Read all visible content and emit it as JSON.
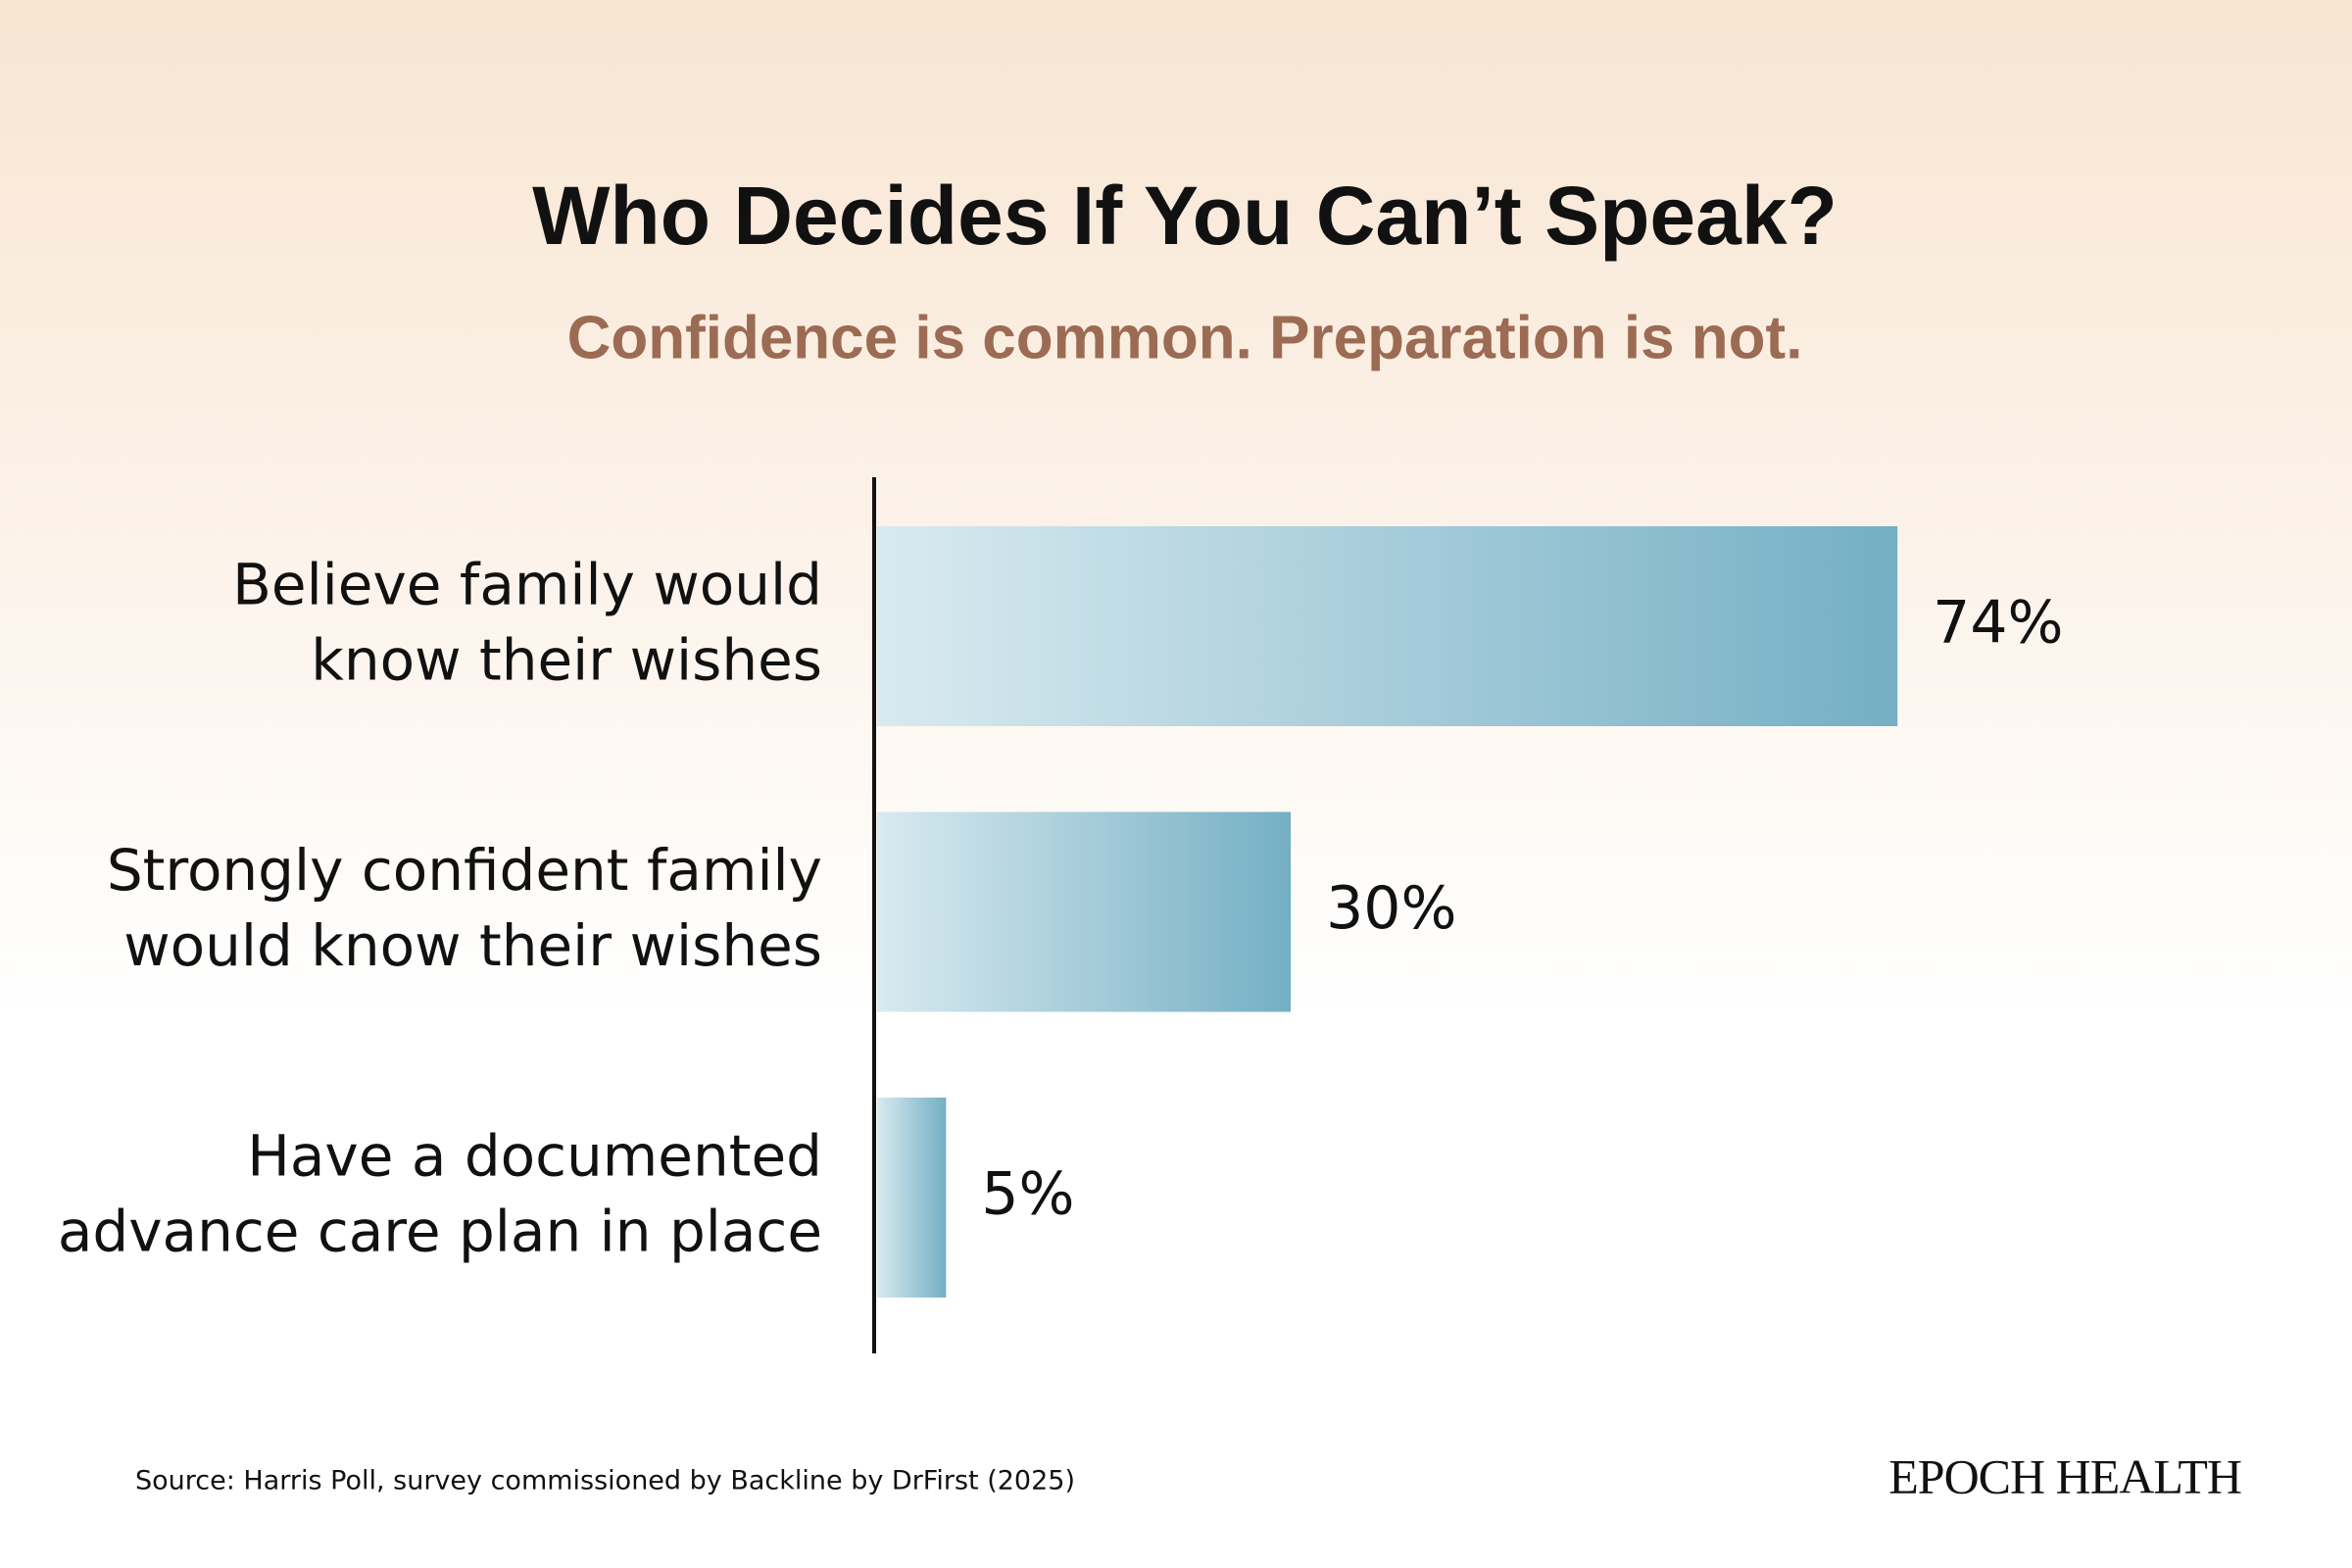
{
  "chart_data": {
    "type": "barh",
    "title": "Who Decides If You Can’t Speak?",
    "subtitle": "Confidence is common. Preparation is not.",
    "categories": [
      [
        "Believe family would",
        "know their wishes"
      ],
      [
        "Strongly confident family",
        "would know their wishes"
      ],
      [
        "Have a documented",
        "advance care plan in place"
      ]
    ],
    "values": [
      74,
      30,
      5
    ],
    "value_labels": [
      "74%",
      "30%",
      "5%"
    ],
    "color": "#74afc4",
    "source": "Source: Harris Poll, survey commissioned by Backline by DrFirst (2025)",
    "brand": "EPOCH HEALTH"
  }
}
